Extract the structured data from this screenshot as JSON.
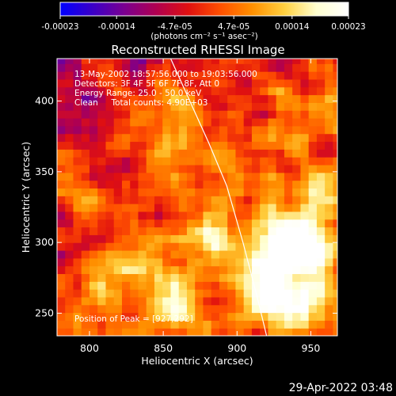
{
  "chart_data": {
    "type": "heatmap",
    "title": "Reconstructed RHESSI Image",
    "xlabel": "Heliocentric X (arcsec)",
    "ylabel": "Heliocentric Y (arcsec)",
    "xlim": [
      778,
      968
    ],
    "ylim": [
      234,
      430
    ],
    "xticks": [
      800,
      850,
      900,
      950
    ],
    "yticks": [
      250,
      300,
      350,
      400
    ],
    "colorbar": {
      "ticks": [
        -0.00023,
        -0.00014,
        -4.7e-05,
        4.7e-05,
        0.00014,
        0.00023
      ],
      "tick_labels": [
        "-0.00023",
        "-0.00014",
        "-4.7e-05",
        "4.7e-05",
        "0.00014",
        "0.00023"
      ],
      "units": "(photons cm⁻² s⁻¹ asec⁻²)",
      "range": [
        -0.00023,
        0.00023
      ],
      "colormap": [
        "#0000ff",
        "#3a00c8",
        "#7a0090",
        "#b00050",
        "#e01010",
        "#ff5000",
        "#ff9000",
        "#ffd040",
        "#ffffd0",
        "#ffffff"
      ]
    },
    "annotations": [
      "13-May-2002 18:57:56.000 to 19:03:56.000",
      "Detectors: 3F 4F 5F 6F 7F 8F, Att 0",
      "Energy Range: 25.0 - 50.0 keV",
      "Clean     Total counts: 4.90E+03"
    ],
    "peak_label": "Position of Peak = [927,292]",
    "peak": [
      927,
      292
    ],
    "limb_curve_x": [
      855,
      868,
      881,
      893,
      904,
      914,
      920
    ],
    "limb_curve_y": [
      430,
      400,
      370,
      340,
      300,
      260,
      234
    ],
    "hot_spots": [
      {
        "x": 852,
        "y": 360,
        "v": 0.00016
      },
      {
        "x": 860,
        "y": 400,
        "v": 0.0001
      },
      {
        "x": 930,
        "y": 296,
        "v": 0.00023
      },
      {
        "x": 950,
        "y": 300,
        "v": 0.0002
      },
      {
        "x": 918,
        "y": 270,
        "v": 0.00018
      },
      {
        "x": 940,
        "y": 255,
        "v": 0.00017
      },
      {
        "x": 880,
        "y": 300,
        "v": 0.00015
      },
      {
        "x": 860,
        "y": 255,
        "v": 0.00015
      },
      {
        "x": 830,
        "y": 290,
        "v": 0.00012
      },
      {
        "x": 800,
        "y": 265,
        "v": 0.0001
      },
      {
        "x": 795,
        "y": 335,
        "v": 0.00012
      },
      {
        "x": 960,
        "y": 400,
        "v": 8e-05
      },
      {
        "x": 960,
        "y": 350,
        "v": 9e-05
      },
      {
        "x": 900,
        "y": 355,
        "v": 7e-05
      }
    ]
  },
  "footer": {
    "date": "29-Apr-2022 03:48"
  }
}
